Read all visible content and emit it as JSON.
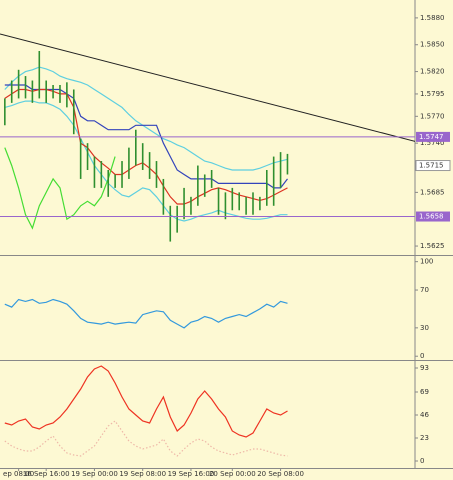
{
  "chart_data": [
    {
      "type": "ohlc",
      "color": "#2f8f2f",
      "xlim": [
        -0.7,
        59.5
      ],
      "ylim": [
        1.5615,
        1.59
      ],
      "yticks": [
        {
          "value": 1.588,
          "label": "1.5880"
        },
        {
          "value": 1.585,
          "label": "1.5850"
        },
        {
          "value": 1.582,
          "label": "1.5820"
        },
        {
          "value": 1.5795,
          "label": "1.5795"
        },
        {
          "value": 1.577,
          "label": "1.5770"
        },
        {
          "value": 1.574,
          "label": "1.5740"
        },
        {
          "value": 1.5685,
          "label": "1.5685"
        },
        {
          "value": 1.5625,
          "label": "1.5625"
        }
      ],
      "high": [
        1.579,
        1.581,
        1.5822,
        1.5815,
        1.581,
        1.5843,
        1.581,
        1.5805,
        1.5805,
        1.5808,
        1.58,
        1.5745,
        1.574,
        1.5725,
        1.572,
        1.571,
        1.5705,
        1.572,
        1.5735,
        1.5755,
        1.574,
        1.573,
        1.572,
        1.57,
        1.567,
        1.567,
        1.569,
        1.568,
        1.5715,
        1.5705,
        1.571,
        1.569,
        1.5685,
        1.569,
        1.5685,
        1.568,
        1.5685,
        1.568,
        1.571,
        1.5725,
        1.573,
        1.5728
      ],
      "low": [
        1.576,
        1.5785,
        1.579,
        1.579,
        1.5785,
        1.579,
        1.5785,
        1.579,
        1.5785,
        1.578,
        1.575,
        1.57,
        1.571,
        1.569,
        1.569,
        1.568,
        1.569,
        1.569,
        1.57,
        1.5715,
        1.571,
        1.57,
        1.569,
        1.566,
        1.563,
        1.564,
        1.5655,
        1.566,
        1.567,
        1.568,
        1.569,
        1.566,
        1.5655,
        1.5665,
        1.5665,
        1.566,
        1.566,
        1.5665,
        1.567,
        1.567,
        1.569,
        1.5705
      ],
      "series": [
        {
          "color": "#5ecfe0",
          "values": [
            1.58,
            1.5808,
            1.5815,
            1.582,
            1.5822,
            1.5825,
            1.5823,
            1.582,
            1.5815,
            1.5812,
            1.581,
            1.5808,
            1.5805,
            1.58,
            1.5795,
            1.579,
            1.5785,
            1.578,
            1.5772,
            1.5765,
            1.576,
            1.5755,
            1.575,
            1.5745,
            1.5742,
            1.5738,
            1.5735,
            1.573,
            1.5725,
            1.572,
            1.5718,
            1.5715,
            1.5712,
            1.571,
            1.571,
            1.571,
            1.571,
            1.5712,
            1.5715,
            1.5718,
            1.572,
            1.5722
          ]
        },
        {
          "color": "#5ecfe0",
          "values": [
            1.578,
            1.5782,
            1.5785,
            1.5787,
            1.5787,
            1.5785,
            1.5785,
            1.5782,
            1.5778,
            1.577,
            1.576,
            1.5745,
            1.573,
            1.5715,
            1.5705,
            1.5695,
            1.5688,
            1.5682,
            1.568,
            1.5685,
            1.569,
            1.5688,
            1.568,
            1.567,
            1.566,
            1.5655,
            1.5653,
            1.5655,
            1.5658,
            1.566,
            1.5662,
            1.5665,
            1.5662,
            1.566,
            1.5658,
            1.5656,
            1.5655,
            1.5655,
            1.5656,
            1.5658,
            1.566,
            1.566
          ]
        },
        {
          "color": "#3344bb",
          "values": [
            1.5805,
            1.5805,
            1.5805,
            1.5805,
            1.58,
            1.58,
            1.58,
            1.58,
            1.58,
            1.5795,
            1.579,
            1.577,
            1.5765,
            1.5765,
            1.576,
            1.5755,
            1.5755,
            1.5755,
            1.5755,
            1.576,
            1.576,
            1.576,
            1.576,
            1.574,
            1.5725,
            1.571,
            1.5705,
            1.57,
            1.57,
            1.57,
            1.57,
            1.5695,
            1.5695,
            1.5695,
            1.5695,
            1.5695,
            1.5695,
            1.5695,
            1.5695,
            1.569,
            1.569,
            1.57
          ]
        },
        {
          "color": "#dd3322",
          "values": [
            1.579,
            1.5795,
            1.58,
            1.58,
            1.5798,
            1.58,
            1.58,
            1.5798,
            1.5795,
            1.5795,
            1.578,
            1.574,
            1.5735,
            1.5725,
            1.5718,
            1.5712,
            1.5705,
            1.5705,
            1.571,
            1.5715,
            1.5718,
            1.5712,
            1.5705,
            1.5692,
            1.568,
            1.5672,
            1.5672,
            1.5675,
            1.568,
            1.5684,
            1.5688,
            1.569,
            1.5688,
            1.5685,
            1.5682,
            1.568,
            1.5678,
            1.5676,
            1.5678,
            1.5682,
            1.5686,
            1.569
          ]
        },
        {
          "color": "#44dd33",
          "values": [
            1.5735,
            1.5715,
            1.569,
            1.566,
            1.5645,
            1.567,
            1.5685,
            1.57,
            1.569,
            1.5655,
            1.566,
            1.567,
            1.5675,
            1.567,
            1.568,
            1.57,
            1.5725,
            null,
            null,
            null,
            null,
            null,
            null,
            null,
            null,
            null,
            null,
            null,
            null,
            null,
            null,
            null,
            null,
            null,
            null,
            null,
            null,
            null,
            null,
            null,
            null,
            null
          ]
        }
      ],
      "trend": {
        "color": "#222222",
        "x": [
          -0.7,
          60
        ],
        "y": [
          1.5862,
          1.5741
        ]
      },
      "hlines": [
        {
          "value": 1.5747,
          "label": "1.5747",
          "color": "#9966cc"
        },
        {
          "value": 1.5658,
          "label": "1.5658",
          "color": "#9966cc"
        }
      ],
      "price_marker": {
        "value": 1.5715,
        "label": "1.5715"
      }
    },
    {
      "type": "line",
      "xlim": [
        -0.7,
        59.5
      ],
      "ylim": [
        -4,
        106
      ],
      "yticks": [
        100,
        70,
        30,
        0
      ],
      "series": [
        {
          "color": "#3399dd",
          "values": [
            55,
            52,
            60,
            58,
            60,
            56,
            57,
            60,
            58,
            55,
            48,
            40,
            36,
            35,
            34,
            36,
            34,
            35,
            36,
            35,
            44,
            46,
            48,
            47,
            38,
            34,
            30,
            36,
            38,
            42,
            40,
            36,
            40,
            42,
            44,
            42,
            46,
            50,
            55,
            52,
            58,
            56
          ]
        }
      ]
    },
    {
      "type": "line",
      "xlim": [
        -0.7,
        59.5
      ],
      "ylim": [
        -7,
        100
      ],
      "yticks": [
        93,
        69,
        46,
        23,
        0
      ],
      "series": [
        {
          "color": "#eeb8a8",
          "dash": true,
          "values": [
            20,
            15,
            12,
            10,
            10,
            14,
            20,
            25,
            15,
            8,
            6,
            5,
            10,
            15,
            25,
            35,
            40,
            30,
            20,
            15,
            12,
            14,
            16,
            22,
            10,
            5,
            12,
            18,
            22,
            20,
            14,
            10,
            8,
            6,
            8,
            10,
            12,
            12,
            10,
            8,
            6,
            5
          ]
        },
        {
          "color": "#ee3322",
          "values": [
            38,
            36,
            40,
            42,
            34,
            32,
            36,
            38,
            44,
            52,
            62,
            72,
            84,
            92,
            95,
            90,
            78,
            64,
            52,
            46,
            40,
            38,
            52,
            64,
            44,
            30,
            36,
            48,
            62,
            70,
            62,
            52,
            44,
            30,
            26,
            24,
            28,
            40,
            52,
            48,
            46,
            50
          ]
        }
      ],
      "xticks": [
        {
          "value": 2,
          "label": "ep 08:00"
        },
        {
          "value": 6,
          "label": "16 Sep 16:00"
        },
        {
          "value": 13,
          "label": "19 Sep 00:00"
        },
        {
          "value": 20,
          "label": "19 Sep 08:00"
        },
        {
          "value": 27,
          "label": "19 Sep 16:00"
        },
        {
          "value": 33,
          "label": "20 Sep 00:00"
        },
        {
          "value": 40,
          "label": "20 Sep 08:00"
        }
      ]
    }
  ]
}
